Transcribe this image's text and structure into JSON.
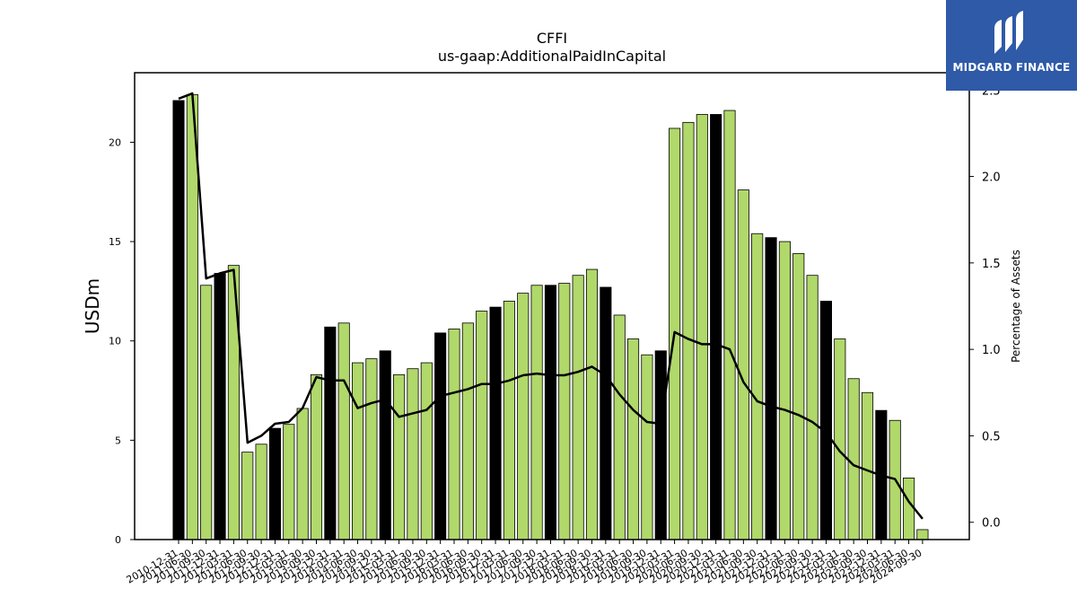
{
  "chart_data": {
    "type": "bar",
    "title": "CFFI",
    "subtitle": "us-gaap:AdditionalPaidInCapital",
    "ylabel": "USDm",
    "y2label": "Percentage of Assets",
    "ylim": [
      0,
      23.5
    ],
    "y2lim": [
      -0.1,
      2.6
    ],
    "yticks": [
      0,
      5,
      10,
      15,
      20
    ],
    "y2ticks": [
      0.0,
      0.5,
      1.0,
      1.5,
      2.0,
      2.5
    ],
    "categories": [
      "2010-12-31",
      "2011-06-30",
      "2011-09-30",
      "2011-12-31",
      "2012-03-31",
      "2012-06-30",
      "2012-09-30",
      "2012-12-31",
      "2013-03-31",
      "2013-06-30",
      "2013-09-30",
      "2013-12-31",
      "2014-03-31",
      "2014-06-30",
      "2014-09-30",
      "2014-12-31",
      "2015-03-31",
      "2015-06-30",
      "2015-09-30",
      "2015-12-31",
      "2016-03-31",
      "2016-06-30",
      "2016-09-30",
      "2016-12-31",
      "2017-03-31",
      "2017-06-30",
      "2017-09-30",
      "2017-12-31",
      "2018-03-31",
      "2018-06-30",
      "2018-09-30",
      "2018-12-31",
      "2019-03-31",
      "2019-06-30",
      "2019-09-30",
      "2019-12-31",
      "2020-03-31",
      "2020-06-30",
      "2020-09-30",
      "2020-12-31",
      "2021-03-31",
      "2021-06-30",
      "2021-09-30",
      "2021-12-31",
      "2022-03-31",
      "2022-06-30",
      "2022-09-30",
      "2022-12-31",
      "2023-03-31",
      "2023-06-30",
      "2023-09-30",
      "2023-12-31",
      "2024-03-31",
      "2024-06-30",
      "2024-09-30"
    ],
    "series": [
      {
        "values": [
          22.1,
          22.4,
          12.8,
          13.4,
          13.8,
          4.4,
          4.8,
          5.6,
          5.8,
          6.6,
          8.3,
          10.7,
          10.9,
          8.9,
          9.1,
          9.5,
          8.3,
          8.6,
          8.9,
          10.4,
          10.6,
          10.9,
          11.5,
          11.7,
          12.0,
          12.4,
          12.8,
          12.8,
          12.9,
          13.3,
          13.6,
          12.7,
          11.3,
          10.1,
          9.3,
          9.5,
          20.7,
          21.0,
          21.4,
          21.4,
          21.6,
          17.6,
          15.4,
          15.2,
          15.0,
          14.4,
          13.3,
          12.0,
          10.1,
          8.1,
          7.4,
          6.5,
          6.0,
          3.1,
          0.5
        ],
        "year_end": [
          true,
          false,
          false,
          true,
          false,
          false,
          false,
          true,
          false,
          false,
          false,
          true,
          false,
          false,
          false,
          true,
          false,
          false,
          false,
          true,
          false,
          false,
          false,
          true,
          false,
          false,
          false,
          true,
          false,
          false,
          false,
          true,
          false,
          false,
          false,
          true,
          false,
          false,
          false,
          true,
          false,
          false,
          false,
          true,
          false,
          false,
          false,
          true,
          false,
          false,
          false,
          true,
          false,
          false,
          false
        ]
      },
      {
        "axis": "right",
        "values": [
          2.45,
          2.48,
          1.41,
          1.44,
          1.46,
          0.46,
          0.5,
          0.57,
          0.58,
          0.66,
          0.84,
          0.82,
          0.82,
          0.66,
          0.69,
          0.71,
          0.61,
          0.63,
          0.65,
          0.73,
          0.75,
          0.77,
          0.8,
          0.8,
          0.82,
          0.85,
          0.86,
          0.85,
          0.85,
          0.87,
          0.9,
          0.85,
          0.74,
          0.65,
          0.58,
          0.57,
          1.1,
          1.06,
          1.03,
          1.03,
          1.0,
          0.81,
          0.7,
          0.67,
          0.65,
          0.62,
          0.58,
          0.52,
          0.41,
          0.33,
          0.3,
          0.27,
          0.25,
          0.12,
          0.02
        ]
      }
    ],
    "colors": {
      "bar": "#b0d86a",
      "bar_year_end": "#000000",
      "bar_edge": "#000000",
      "line": "#000000"
    }
  },
  "logo": {
    "text": "MIDGARD FINANCE",
    "background": "#2e5aa8"
  }
}
